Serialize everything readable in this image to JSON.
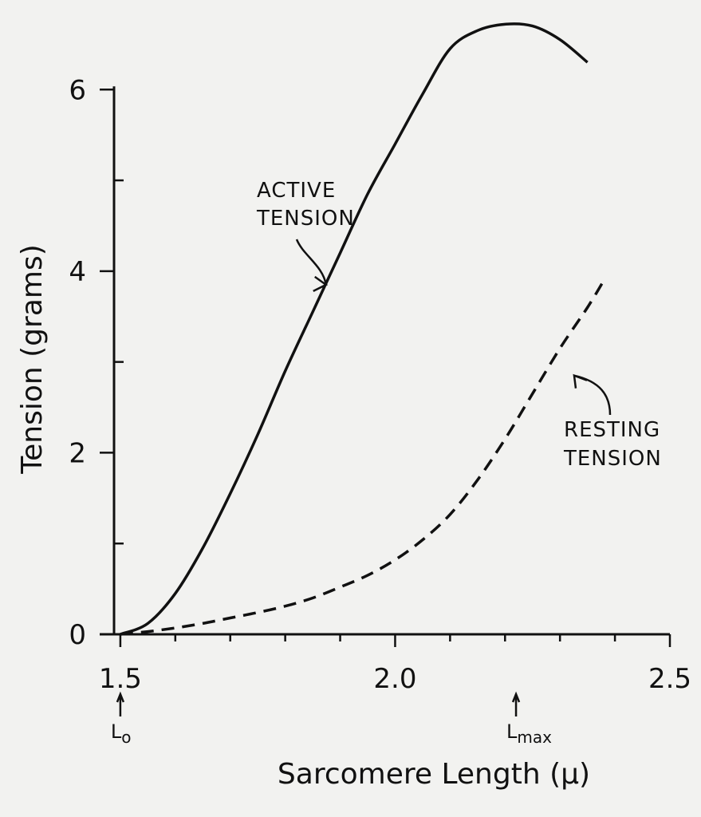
{
  "chart_data": {
    "type": "line",
    "xlabel": "Sarcomere Length (μ)",
    "ylabel": "Tension (grams)",
    "xlim": [
      1.4,
      2.5
    ],
    "ylim": [
      0,
      6.6
    ],
    "x_ticks": [
      1.5,
      2.0,
      2.5
    ],
    "x_tick_labels": [
      "1.5",
      "2.0",
      "2.5"
    ],
    "y_ticks": [
      0,
      2,
      4,
      6
    ],
    "y_tick_labels": [
      "0",
      "2",
      "4",
      "6"
    ],
    "grid": false,
    "series": [
      {
        "name": "ACTIVE TENSION",
        "style": "solid",
        "x": [
          1.5,
          1.55,
          1.6,
          1.65,
          1.7,
          1.75,
          1.8,
          1.85,
          1.9,
          1.95,
          2.0,
          2.05,
          2.1,
          2.15,
          2.2,
          2.25,
          2.3,
          2.35
        ],
        "y": [
          0.0,
          0.12,
          0.45,
          0.95,
          1.55,
          2.2,
          2.9,
          3.55,
          4.2,
          4.85,
          5.4,
          5.95,
          6.45,
          6.65,
          6.72,
          6.7,
          6.55,
          6.3
        ]
      },
      {
        "name": "RESTING TENSION",
        "style": "dashed",
        "x": [
          1.5,
          1.55,
          1.6,
          1.65,
          1.7,
          1.75,
          1.8,
          1.85,
          1.9,
          1.95,
          2.0,
          2.05,
          2.1,
          2.15,
          2.2,
          2.25,
          2.3,
          2.35,
          2.38
        ],
        "y": [
          0.0,
          0.03,
          0.07,
          0.12,
          0.18,
          0.24,
          0.31,
          0.4,
          0.52,
          0.65,
          0.82,
          1.04,
          1.32,
          1.7,
          2.15,
          2.65,
          3.15,
          3.6,
          3.9
        ]
      }
    ],
    "annotations": [
      {
        "id": "active",
        "lines": [
          "ACTIVE",
          "TENSION"
        ]
      },
      {
        "id": "resting",
        "lines": [
          "RESTING",
          "TENSION"
        ]
      }
    ],
    "markers": [
      {
        "x": 1.5,
        "label_main": "L",
        "label_sub": "o"
      },
      {
        "x": 2.22,
        "label_main": "L",
        "label_sub": "max"
      }
    ]
  }
}
